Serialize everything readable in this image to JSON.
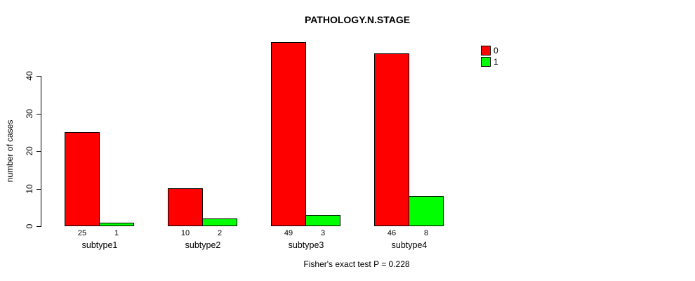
{
  "title": "PATHOLOGY.N.STAGE",
  "ylabel": "number of cases",
  "footer": "Fisher's exact test P = 0.228",
  "colors": {
    "series0": "#ff0000",
    "series1": "#00ff00",
    "axis": "#000000",
    "background": "#ffffff"
  },
  "chart_data": {
    "type": "bar",
    "title": "PATHOLOGY.N.STAGE",
    "xlabel": "",
    "ylabel": "number of cases",
    "categories": [
      "subtype1",
      "subtype2",
      "subtype3",
      "subtype4"
    ],
    "series": [
      {
        "name": "0",
        "color": "#ff0000",
        "values": [
          25,
          10,
          49,
          46
        ]
      },
      {
        "name": "1",
        "color": "#00ff00",
        "values": [
          1,
          2,
          3,
          8
        ]
      }
    ],
    "bar_value_labels": [
      [
        "25",
        "1"
      ],
      [
        "10",
        "2"
      ],
      [
        "49",
        "3"
      ],
      [
        "46",
        "8"
      ]
    ],
    "ylim": [
      0,
      40
    ],
    "yticks": [
      0,
      10,
      20,
      30,
      40
    ],
    "grid": false,
    "legend_position": "right",
    "legend_entries": [
      {
        "label": "0",
        "color": "#ff0000"
      },
      {
        "label": "1",
        "color": "#00ff00"
      }
    ],
    "annotation": "Fisher's exact test P = 0.228"
  }
}
